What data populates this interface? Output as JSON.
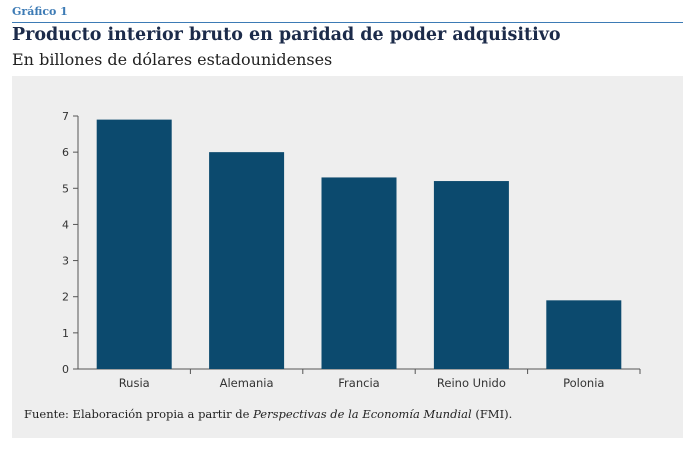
{
  "header": {
    "figure_label": "Gráfico 1",
    "title": "Producto interior bruto en paridad de poder adquisitivo",
    "subtitle": "En billones de dólares estadounidenses"
  },
  "source": {
    "prefix": "Fuente: Elaboración propia a partir de ",
    "publication": "Perspectivas de la Economía Mundial",
    "suffix": " (FMI)."
  },
  "colors": {
    "bar": "#0c4a6e",
    "accent": "#3d7bb5",
    "panel": "#eeeeee"
  },
  "chart_data": {
    "type": "bar",
    "categories": [
      "Rusia",
      "Alemania",
      "Francia",
      "Reino Unido",
      "Polonia"
    ],
    "values": [
      6.9,
      6.0,
      5.3,
      5.2,
      1.9
    ],
    "yticks": [
      "0",
      "1",
      "2",
      "3",
      "4",
      "5",
      "6",
      "7"
    ],
    "ylim": [
      0,
      7
    ],
    "grid": false,
    "legend": "none"
  }
}
